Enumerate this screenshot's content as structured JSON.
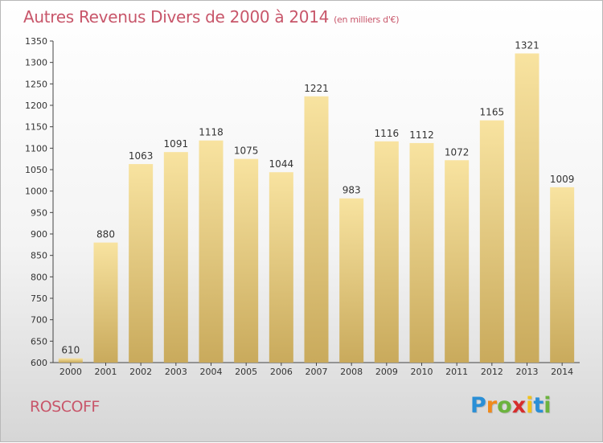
{
  "header": {
    "title": "Autres Revenus Divers de 2000 à 2014",
    "subtitle": "(en milliers d'€)"
  },
  "footer": {
    "city": "ROSCOFF",
    "logo_letters": [
      "P",
      "r",
      "o",
      "x",
      "i",
      "t",
      "i"
    ],
    "logo_colors": [
      "#2a8fd6",
      "#f08a1c",
      "#6cb33e",
      "#d62d2d",
      "#f2c21a",
      "#2a8fd6",
      "#6cb33e"
    ]
  },
  "colors": {
    "bar_top": "#f8e3a0",
    "bar_bottom": "#c9aa5c",
    "title": "#c8566a"
  },
  "chart_data": {
    "type": "bar",
    "title": "Autres Revenus Divers de 2000 à 2014",
    "subtitle": "(en milliers d'€)",
    "categories": [
      "2000",
      "2001",
      "2002",
      "2003",
      "2004",
      "2005",
      "2006",
      "2007",
      "2008",
      "2009",
      "2010",
      "2011",
      "2012",
      "2013",
      "2014"
    ],
    "values": [
      610,
      880,
      1063,
      1091,
      1118,
      1075,
      1044,
      1221,
      983,
      1116,
      1112,
      1072,
      1165,
      1321,
      1009
    ],
    "ylim": [
      600,
      1350
    ],
    "yticks": [
      600,
      650,
      700,
      750,
      800,
      850,
      900,
      950,
      1000,
      1050,
      1100,
      1150,
      1200,
      1250,
      1300,
      1350
    ],
    "xlabel": "",
    "ylabel": "",
    "grid": false,
    "data_labels": true
  }
}
